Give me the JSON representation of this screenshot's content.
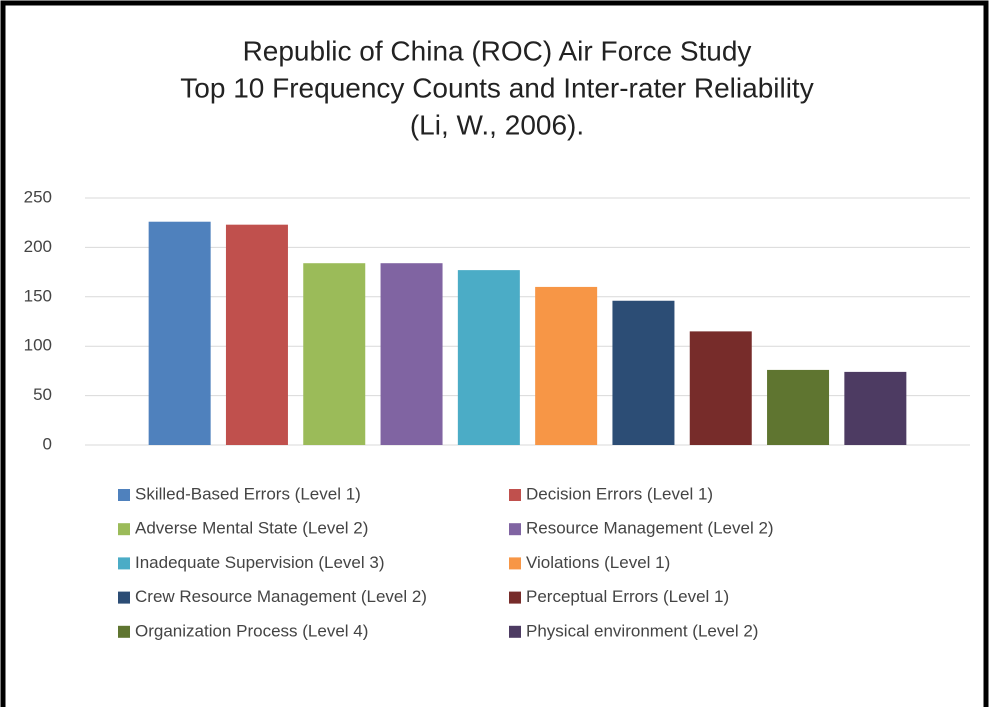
{
  "chart_data": {
    "type": "bar",
    "title": [
      "Republic of China (ROC) Air Force Study",
      "Top 10 Frequency Counts and Inter-rater Reliability",
      "(Li, W., 2006)."
    ],
    "categories": [
      null
    ],
    "series": [
      {
        "name": "Skilled-Based Errors (Level 1)",
        "color": "#4f81bd",
        "values": [
          226
        ]
      },
      {
        "name": "Decision Errors (Level 1)",
        "color": "#c0504d",
        "values": [
          223
        ]
      },
      {
        "name": "Adverse Mental State (Level 2)",
        "color": "#9bbb59",
        "values": [
          184
        ]
      },
      {
        "name": "Resource Management (Level 2)",
        "color": "#8064a2",
        "values": [
          184
        ]
      },
      {
        "name": "Inadequate Supervision (Level 3)",
        "color": "#4bacc6",
        "values": [
          177
        ]
      },
      {
        "name": "Violations (Level 1)",
        "color": "#f79646",
        "values": [
          160
        ]
      },
      {
        "name": "Crew Resource Management (Level 2)",
        "color": "#2c4d75",
        "values": [
          146
        ]
      },
      {
        "name": "Perceptual Errors (Level 1)",
        "color": "#772c2a",
        "values": [
          115
        ]
      },
      {
        "name": "Organization Process (Level 4)",
        "color": "#5f7530",
        "values": [
          76
        ]
      },
      {
        "name": "Physical environment (Level 2)",
        "color": "#4d3b62",
        "values": [
          74
        ]
      }
    ],
    "ylim": [
      0,
      250
    ],
    "yticks": [
      0,
      50,
      100,
      150,
      200,
      250
    ],
    "grid": true
  }
}
